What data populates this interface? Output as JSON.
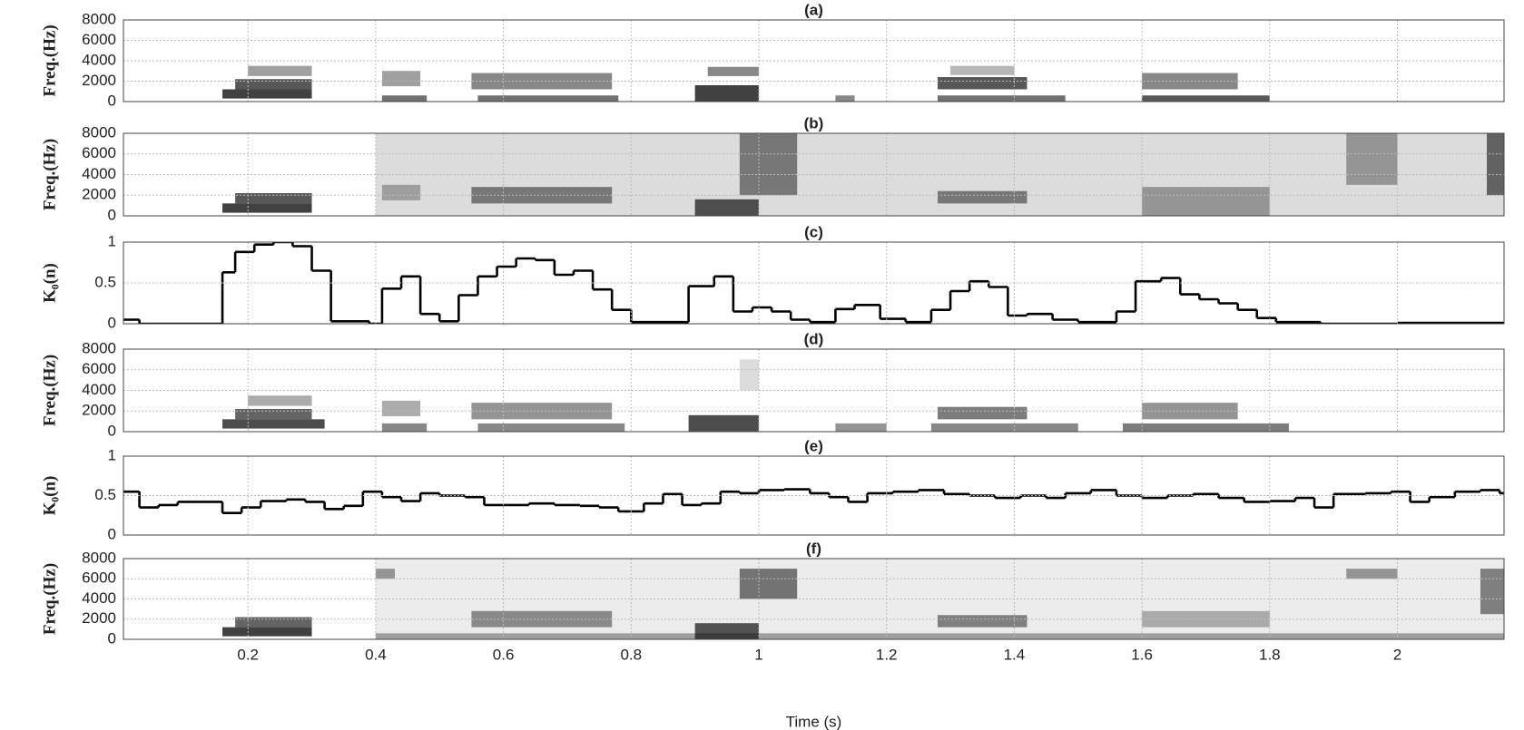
{
  "chart_data": [
    {
      "type": "spectrogram",
      "title": "(a)",
      "ylabel": "Freq.(Hz)",
      "xlim": [
        0.005,
        2.167
      ],
      "xticks": [
        0.2,
        0.4,
        0.6,
        0.8,
        1,
        1.2,
        1.4,
        1.6,
        1.8,
        2
      ],
      "ylim": [
        0,
        8000
      ],
      "yticks": [
        0,
        2000,
        4000,
        6000,
        8000
      ],
      "grid": true,
      "blobs": [
        {
          "t": [
            0.16,
            0.3
          ],
          "f": [
            300,
            1200
          ],
          "level": 0.8
        },
        {
          "t": [
            0.18,
            0.3
          ],
          "f": [
            1200,
            2200
          ],
          "level": 0.7
        },
        {
          "t": [
            0.2,
            0.3
          ],
          "f": [
            2500,
            3500
          ],
          "level": 0.4
        },
        {
          "t": [
            0.41,
            0.47
          ],
          "f": [
            1500,
            3000
          ],
          "level": 0.4
        },
        {
          "t": [
            0.41,
            0.48
          ],
          "f": [
            0,
            600
          ],
          "level": 0.6
        },
        {
          "t": [
            0.55,
            0.77
          ],
          "f": [
            1200,
            2800
          ],
          "level": 0.5
        },
        {
          "t": [
            0.56,
            0.78
          ],
          "f": [
            0,
            600
          ],
          "level": 0.6
        },
        {
          "t": [
            0.9,
            1.0
          ],
          "f": [
            0,
            1600
          ],
          "level": 0.8
        },
        {
          "t": [
            0.92,
            1.0
          ],
          "f": [
            2500,
            3400
          ],
          "level": 0.5
        },
        {
          "t": [
            1.12,
            1.15
          ],
          "f": [
            0,
            600
          ],
          "level": 0.5
        },
        {
          "t": [
            1.28,
            1.42
          ],
          "f": [
            1200,
            2400
          ],
          "level": 0.7
        },
        {
          "t": [
            1.28,
            1.48
          ],
          "f": [
            0,
            600
          ],
          "level": 0.6
        },
        {
          "t": [
            1.3,
            1.4
          ],
          "f": [
            2600,
            3500
          ],
          "level": 0.3
        },
        {
          "t": [
            1.6,
            1.8
          ],
          "f": [
            0,
            600
          ],
          "level": 0.7
        },
        {
          "t": [
            1.6,
            1.75
          ],
          "f": [
            1200,
            2800
          ],
          "level": 0.5
        }
      ]
    },
    {
      "type": "spectrogram",
      "title": "(b)",
      "ylabel": "Freq.(Hz)",
      "xlim": [
        0.005,
        2.167
      ],
      "xticks": [
        0.2,
        0.4,
        0.6,
        0.8,
        1,
        1.2,
        1.4,
        1.6,
        1.8,
        2
      ],
      "ylim": [
        0,
        8000
      ],
      "yticks": [
        0,
        2000,
        4000,
        6000,
        8000
      ],
      "grid": true,
      "blobs": [
        {
          "t": [
            0.4,
            2.167
          ],
          "f": [
            0,
            8000
          ],
          "level": 0.15
        },
        {
          "t": [
            0.16,
            0.3
          ],
          "f": [
            300,
            1200
          ],
          "level": 0.8
        },
        {
          "t": [
            0.18,
            0.3
          ],
          "f": [
            1200,
            2200
          ],
          "level": 0.7
        },
        {
          "t": [
            0.41,
            0.47
          ],
          "f": [
            1500,
            3000
          ],
          "level": 0.3
        },
        {
          "t": [
            0.55,
            0.77
          ],
          "f": [
            1200,
            2800
          ],
          "level": 0.5
        },
        {
          "t": [
            0.9,
            1.0
          ],
          "f": [
            0,
            1600
          ],
          "level": 0.7
        },
        {
          "t": [
            0.97,
            1.06
          ],
          "f": [
            2000,
            8000
          ],
          "level": 0.5
        },
        {
          "t": [
            1.28,
            1.42
          ],
          "f": [
            1200,
            2400
          ],
          "level": 0.5
        },
        {
          "t": [
            1.6,
            1.8
          ],
          "f": [
            0,
            2800
          ],
          "level": 0.35
        },
        {
          "t": [
            1.92,
            2.0
          ],
          "f": [
            3000,
            8000
          ],
          "level": 0.35
        },
        {
          "t": [
            2.14,
            2.167
          ],
          "f": [
            2000,
            8000
          ],
          "level": 0.6
        }
      ]
    },
    {
      "type": "step",
      "title": "(c)",
      "ylabel": "K₀(n)",
      "xlim": [
        0.005,
        2.167
      ],
      "xticks": [
        0.2,
        0.4,
        0.6,
        0.8,
        1,
        1.2,
        1.4,
        1.6,
        1.8,
        2
      ],
      "ylim": [
        0,
        1
      ],
      "yticks": [
        0,
        0.5,
        1
      ],
      "grid": true,
      "color": "#000000",
      "x": [
        0.005,
        0.03,
        0.16,
        0.18,
        0.21,
        0.24,
        0.27,
        0.3,
        0.33,
        0.39,
        0.41,
        0.44,
        0.47,
        0.5,
        0.53,
        0.56,
        0.59,
        0.62,
        0.65,
        0.68,
        0.71,
        0.74,
        0.77,
        0.8,
        0.89,
        0.93,
        0.96,
        0.99,
        1.02,
        1.05,
        1.08,
        1.12,
        1.15,
        1.19,
        1.23,
        1.27,
        1.3,
        1.33,
        1.36,
        1.39,
        1.42,
        1.46,
        1.5,
        1.56,
        1.59,
        1.63,
        1.66,
        1.69,
        1.72,
        1.75,
        1.78,
        1.81,
        1.88,
        2.0
      ],
      "values": [
        0.05,
        0,
        0.63,
        0.88,
        0.97,
        1.0,
        0.95,
        0.65,
        0.03,
        0,
        0.43,
        0.58,
        0.12,
        0.03,
        0.35,
        0.58,
        0.7,
        0.8,
        0.78,
        0.6,
        0.65,
        0.42,
        0.17,
        0.02,
        0.46,
        0.58,
        0.15,
        0.2,
        0.15,
        0.05,
        0.02,
        0.18,
        0.23,
        0.06,
        0.02,
        0.17,
        0.4,
        0.52,
        0.45,
        0.1,
        0.12,
        0.05,
        0.02,
        0.15,
        0.52,
        0.56,
        0.36,
        0.3,
        0.25,
        0.17,
        0.07,
        0.02,
        0,
        0.01
      ]
    },
    {
      "type": "spectrogram",
      "title": "(d)",
      "ylabel": "Freq.(Hz)",
      "xlim": [
        0.005,
        2.167
      ],
      "xticks": [
        0.2,
        0.4,
        0.6,
        0.8,
        1,
        1.2,
        1.4,
        1.6,
        1.8,
        2
      ],
      "ylim": [
        0,
        8000
      ],
      "yticks": [
        0,
        2000,
        4000,
        6000,
        8000
      ],
      "grid": true,
      "blobs": [
        {
          "t": [
            0.16,
            0.32
          ],
          "f": [
            300,
            1200
          ],
          "level": 0.75
        },
        {
          "t": [
            0.18,
            0.3
          ],
          "f": [
            1200,
            2200
          ],
          "level": 0.65
        },
        {
          "t": [
            0.2,
            0.3
          ],
          "f": [
            2500,
            3500
          ],
          "level": 0.35
        },
        {
          "t": [
            0.41,
            0.47
          ],
          "f": [
            1500,
            3000
          ],
          "level": 0.35
        },
        {
          "t": [
            0.41,
            0.48
          ],
          "f": [
            0,
            800
          ],
          "level": 0.5
        },
        {
          "t": [
            0.55,
            0.77
          ],
          "f": [
            1200,
            2800
          ],
          "level": 0.45
        },
        {
          "t": [
            0.56,
            0.79
          ],
          "f": [
            0,
            800
          ],
          "level": 0.5
        },
        {
          "t": [
            0.89,
            1.0
          ],
          "f": [
            0,
            1600
          ],
          "level": 0.75
        },
        {
          "t": [
            0.97,
            1.0
          ],
          "f": [
            4000,
            7000
          ],
          "level": 0.15
        },
        {
          "t": [
            1.12,
            1.2
          ],
          "f": [
            0,
            800
          ],
          "level": 0.45
        },
        {
          "t": [
            1.28,
            1.42
          ],
          "f": [
            1200,
            2400
          ],
          "level": 0.55
        },
        {
          "t": [
            1.27,
            1.5
          ],
          "f": [
            0,
            800
          ],
          "level": 0.5
        },
        {
          "t": [
            1.57,
            1.83
          ],
          "f": [
            0,
            800
          ],
          "level": 0.55
        },
        {
          "t": [
            1.6,
            1.75
          ],
          "f": [
            1200,
            2800
          ],
          "level": 0.45
        }
      ]
    },
    {
      "type": "step",
      "title": "(e)",
      "ylabel": "K₀(n)",
      "xlim": [
        0.005,
        2.167
      ],
      "xticks": [
        0.2,
        0.4,
        0.6,
        0.8,
        1,
        1.2,
        1.4,
        1.6,
        1.8,
        2
      ],
      "ylim": [
        0,
        1
      ],
      "yticks": [
        0,
        0.5,
        1
      ],
      "grid": true,
      "color": "#000000",
      "x": [
        0.005,
        0.03,
        0.06,
        0.09,
        0.16,
        0.19,
        0.22,
        0.26,
        0.29,
        0.32,
        0.35,
        0.38,
        0.41,
        0.44,
        0.47,
        0.5,
        0.54,
        0.57,
        0.6,
        0.64,
        0.68,
        0.72,
        0.75,
        0.78,
        0.82,
        0.85,
        0.88,
        0.91,
        0.94,
        0.97,
        1.0,
        1.04,
        1.08,
        1.11,
        1.14,
        1.17,
        1.21,
        1.25,
        1.29,
        1.33,
        1.37,
        1.41,
        1.45,
        1.48,
        1.52,
        1.56,
        1.6,
        1.64,
        1.68,
        1.72,
        1.76,
        1.8,
        1.84,
        1.87,
        1.9,
        1.95,
        1.99,
        2.02,
        2.05,
        2.09,
        2.13,
        2.16
      ],
      "values": [
        0.55,
        0.35,
        0.38,
        0.42,
        0.28,
        0.35,
        0.43,
        0.45,
        0.42,
        0.33,
        0.37,
        0.55,
        0.48,
        0.43,
        0.53,
        0.5,
        0.48,
        0.38,
        0.38,
        0.4,
        0.38,
        0.37,
        0.35,
        0.3,
        0.4,
        0.52,
        0.38,
        0.4,
        0.55,
        0.53,
        0.57,
        0.58,
        0.53,
        0.48,
        0.42,
        0.53,
        0.55,
        0.57,
        0.52,
        0.5,
        0.47,
        0.5,
        0.47,
        0.53,
        0.57,
        0.5,
        0.47,
        0.5,
        0.52,
        0.47,
        0.42,
        0.43,
        0.47,
        0.35,
        0.52,
        0.53,
        0.55,
        0.42,
        0.48,
        0.55,
        0.57,
        0.53
      ]
    },
    {
      "type": "spectrogram",
      "title": "(f)",
      "ylabel": "Freq.(Hz)",
      "xlabel": "Time (s)",
      "xlim": [
        0.005,
        2.167
      ],
      "xticks": [
        0.2,
        0.4,
        0.6,
        0.8,
        1,
        1.2,
        1.4,
        1.6,
        1.8,
        2
      ],
      "ylim": [
        0,
        8000
      ],
      "yticks": [
        0,
        2000,
        4000,
        6000,
        8000
      ],
      "grid": true,
      "blobs": [
        {
          "t": [
            0.4,
            2.167
          ],
          "f": [
            0,
            8000
          ],
          "level": 0.08
        },
        {
          "t": [
            0.4,
            2.167
          ],
          "f": [
            0,
            600
          ],
          "level": 0.35
        },
        {
          "t": [
            0.16,
            0.3
          ],
          "f": [
            300,
            1200
          ],
          "level": 0.8
        },
        {
          "t": [
            0.18,
            0.3
          ],
          "f": [
            1200,
            2200
          ],
          "level": 0.65
        },
        {
          "t": [
            0.4,
            0.43
          ],
          "f": [
            6000,
            7000
          ],
          "level": 0.4
        },
        {
          "t": [
            0.55,
            0.77
          ],
          "f": [
            1200,
            2800
          ],
          "level": 0.45
        },
        {
          "t": [
            0.9,
            1.0
          ],
          "f": [
            0,
            1600
          ],
          "level": 0.7
        },
        {
          "t": [
            0.97,
            1.06
          ],
          "f": [
            4000,
            7000
          ],
          "level": 0.55
        },
        {
          "t": [
            1.28,
            1.42
          ],
          "f": [
            1200,
            2400
          ],
          "level": 0.5
        },
        {
          "t": [
            1.6,
            1.8
          ],
          "f": [
            1200,
            2800
          ],
          "level": 0.3
        },
        {
          "t": [
            1.92,
            2.0
          ],
          "f": [
            6000,
            7000
          ],
          "level": 0.4
        },
        {
          "t": [
            2.13,
            2.167
          ],
          "f": [
            2500,
            7000
          ],
          "level": 0.5
        }
      ]
    }
  ]
}
